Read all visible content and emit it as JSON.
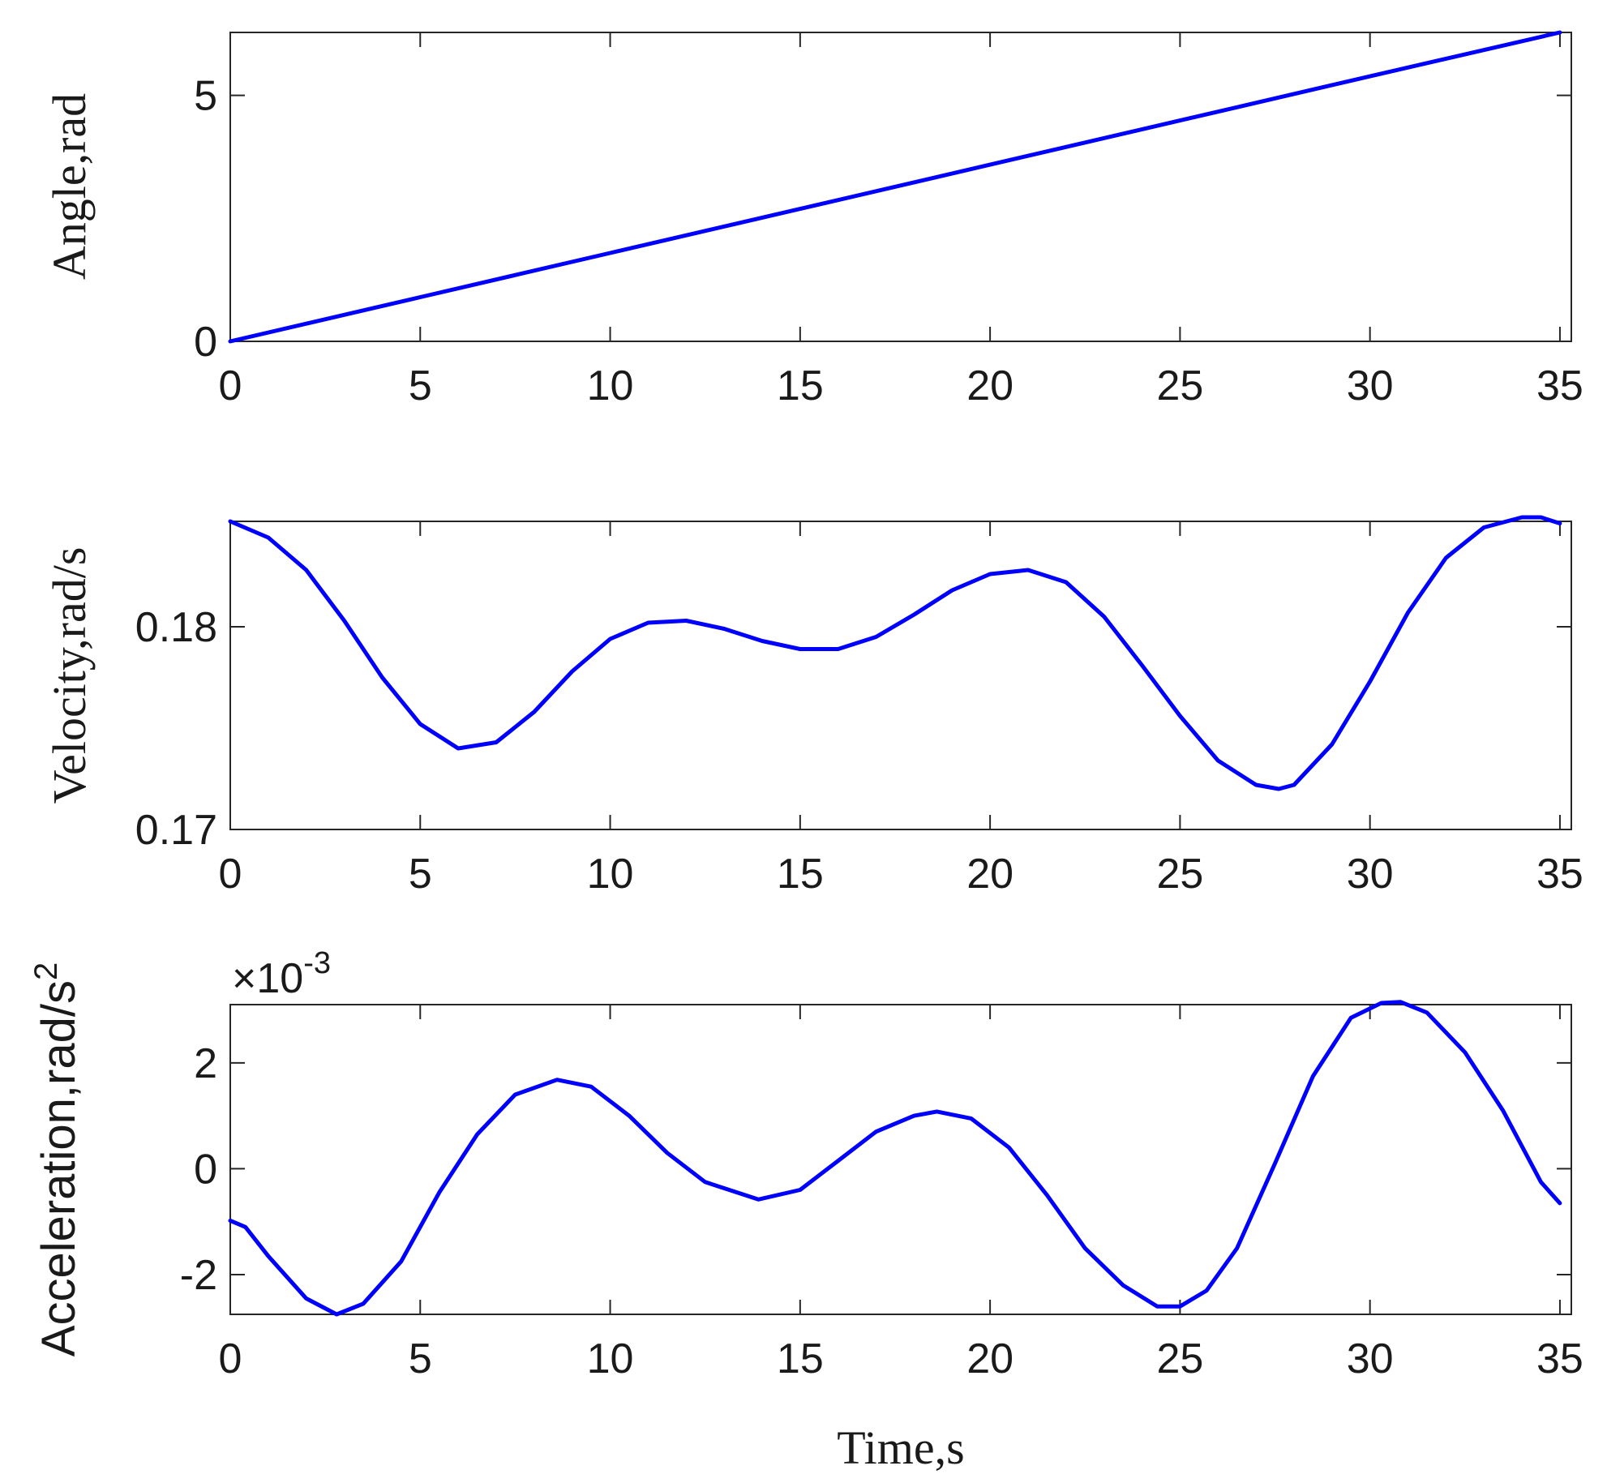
{
  "colors": {
    "series": "#0000ff",
    "axes": "#262626",
    "text": "#1a1a1a"
  },
  "chart_data": [
    {
      "type": "line",
      "id": "angle",
      "ylabel": "Angle,rad",
      "xlabel": "",
      "xlim": [
        0,
        35.3
      ],
      "ylim": [
        0,
        6.28
      ],
      "xticks": [
        0,
        5,
        10,
        15,
        20,
        25,
        30,
        35
      ],
      "xtick_labels": [
        "0",
        "5",
        "10",
        "15",
        "20",
        "25",
        "30",
        "35"
      ],
      "yticks": [
        0,
        5
      ],
      "ytick_labels": [
        "0",
        "5"
      ],
      "series": [
        {
          "x": [
            0,
            5,
            10,
            15,
            20,
            25,
            30,
            35.0
          ],
          "y": [
            0,
            0.898,
            1.796,
            2.694,
            3.592,
            4.49,
            5.388,
            6.28
          ]
        }
      ]
    },
    {
      "type": "line",
      "id": "velocity",
      "ylabel": "Velocity,rad/s",
      "xlabel": "",
      "xlim": [
        0,
        35.3
      ],
      "ylim": [
        0.17,
        0.1852
      ],
      "xticks": [
        0,
        5,
        10,
        15,
        20,
        25,
        30,
        35
      ],
      "xtick_labels": [
        "0",
        "5",
        "10",
        "15",
        "20",
        "25",
        "30",
        "35"
      ],
      "yticks": [
        0.17,
        0.18
      ],
      "ytick_labels": [
        "0.17",
        "0.18"
      ],
      "series": [
        {
          "x": [
            0,
            1,
            2,
            3,
            4,
            5,
            6,
            7,
            8,
            9,
            10,
            11,
            12,
            13,
            14,
            15,
            16,
            17,
            18,
            19,
            20,
            21,
            22,
            23,
            24,
            25,
            26,
            27,
            27.6,
            28,
            29,
            30,
            31,
            32,
            33,
            34,
            34.5,
            35
          ],
          "y": [
            0.1852,
            0.1844,
            0.1828,
            0.1803,
            0.1775,
            0.1752,
            0.174,
            0.1743,
            0.1758,
            0.1778,
            0.1794,
            0.1802,
            0.1803,
            0.1799,
            0.1793,
            0.1789,
            0.1789,
            0.1795,
            0.1806,
            0.1818,
            0.1826,
            0.1828,
            0.1822,
            0.1805,
            0.1781,
            0.1756,
            0.1734,
            0.1722,
            0.172,
            0.1722,
            0.1742,
            0.1773,
            0.1807,
            0.1834,
            0.1849,
            0.1854,
            0.1854,
            0.1851
          ]
        }
      ]
    },
    {
      "type": "line",
      "id": "acceleration",
      "ylabel": "Acceleration,rad/s",
      "ylabel_sup": "2",
      "xlabel": "Time,s",
      "exponent_label": "×10",
      "exponent_sup": "-3",
      "xlim": [
        0,
        35.3
      ],
      "ylim": [
        -2.75,
        3.1
      ],
      "xticks": [
        0,
        5,
        10,
        15,
        20,
        25,
        30,
        35
      ],
      "xtick_labels": [
        "0",
        "5",
        "10",
        "15",
        "20",
        "25",
        "30",
        "35"
      ],
      "yticks": [
        -2,
        0,
        2
      ],
      "ytick_labels": [
        "-2",
        "0",
        "2"
      ],
      "series": [
        {
          "x": [
            0,
            0.4,
            1,
            2,
            2.8,
            3.5,
            4.5,
            5.5,
            6.5,
            7.5,
            8.6,
            9.5,
            10.5,
            11.5,
            12.5,
            13.9,
            15,
            16,
            17,
            18,
            18.6,
            19.5,
            20.5,
            21.5,
            22.5,
            23.5,
            24.4,
            25,
            25.7,
            26.5,
            27.5,
            28.5,
            29.5,
            30.3,
            30.8,
            31.5,
            32.5,
            33.5,
            34.5,
            35
          ],
          "y": [
            -0.98,
            -1.1,
            -1.65,
            -2.45,
            -2.75,
            -2.55,
            -1.75,
            -0.45,
            0.65,
            1.4,
            1.68,
            1.55,
            1.0,
            0.3,
            -0.25,
            -0.58,
            -0.4,
            0.15,
            0.7,
            1.0,
            1.08,
            0.95,
            0.4,
            -0.5,
            -1.5,
            -2.2,
            -2.6,
            -2.6,
            -2.3,
            -1.5,
            0.1,
            1.75,
            2.85,
            3.13,
            3.15,
            2.95,
            2.2,
            1.1,
            -0.25,
            -0.65
          ]
        }
      ]
    }
  ]
}
